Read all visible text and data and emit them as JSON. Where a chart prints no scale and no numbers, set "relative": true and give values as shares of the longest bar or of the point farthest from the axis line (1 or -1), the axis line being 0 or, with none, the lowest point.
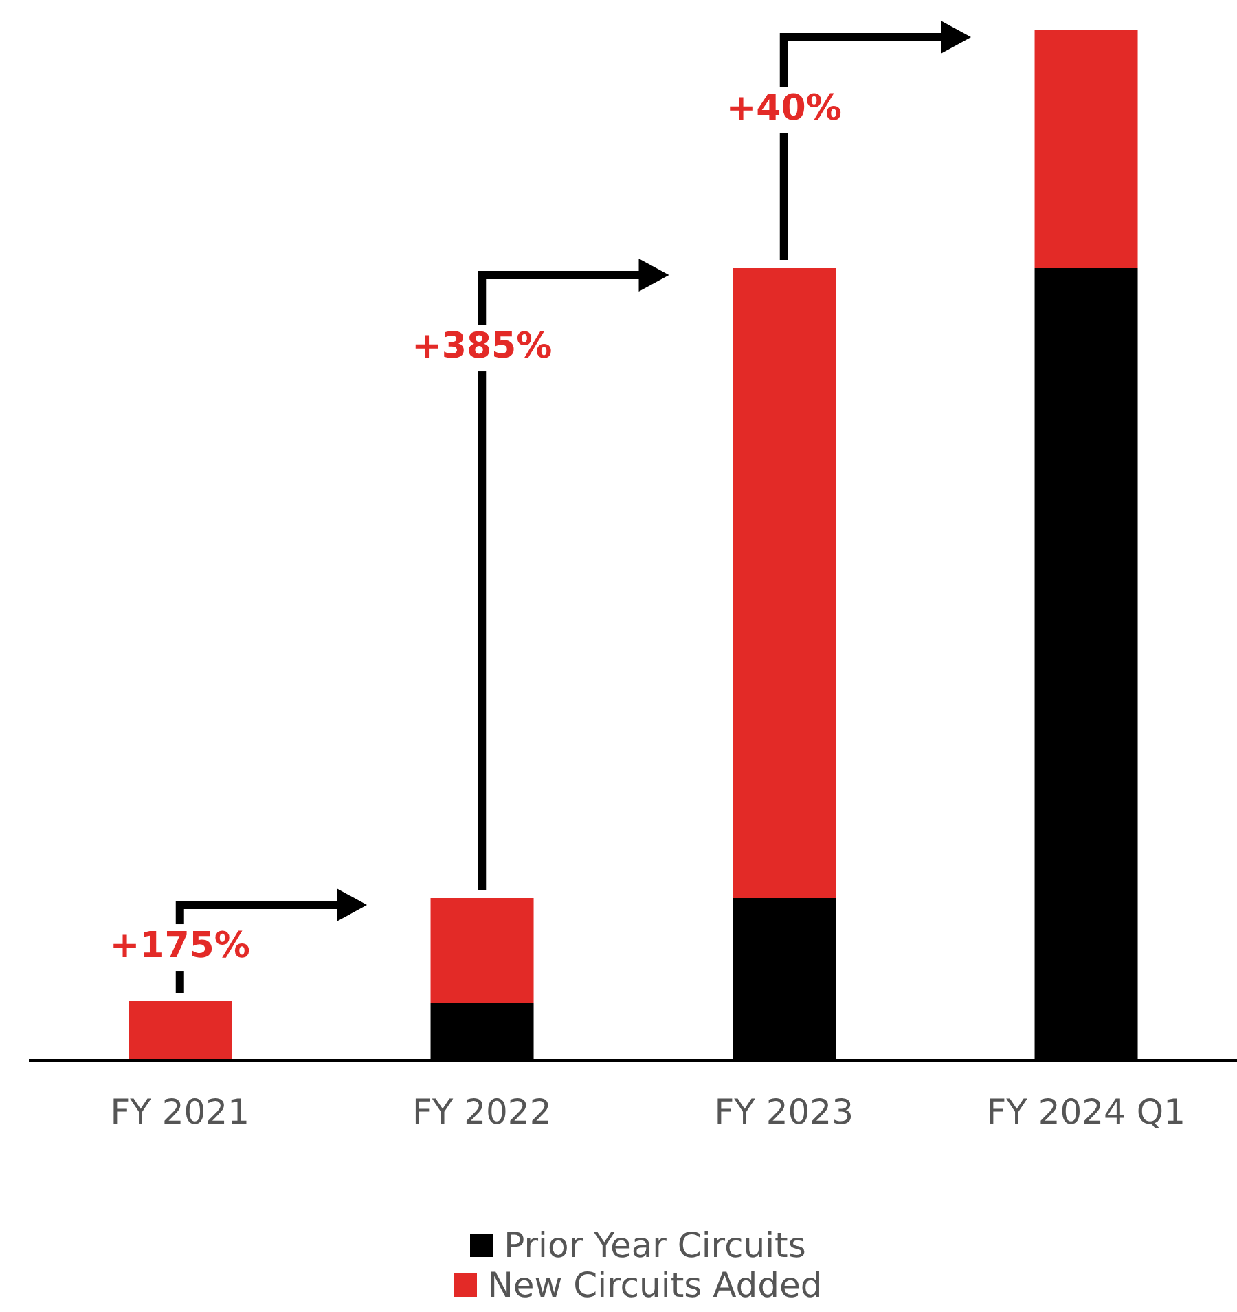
{
  "chart_data": {
    "type": "bar",
    "relative": true,
    "stacked": true,
    "categories": [
      "FY 2021",
      "FY 2022",
      "FY 2023",
      "FY 2024 Q1"
    ],
    "series": [
      {
        "name": "Prior Year Circuits",
        "color": "#000000",
        "values": [
          0,
          0.056,
          0.1575,
          0.769
        ]
      },
      {
        "name": "New Circuits Added",
        "color": "#e32a27",
        "values": [
          0.0574,
          0.1015,
          0.6115,
          0.231
        ]
      }
    ],
    "annotations": [
      "+175%",
      "+385%",
      "+40%"
    ],
    "legend": "bottom",
    "grid": false
  }
}
